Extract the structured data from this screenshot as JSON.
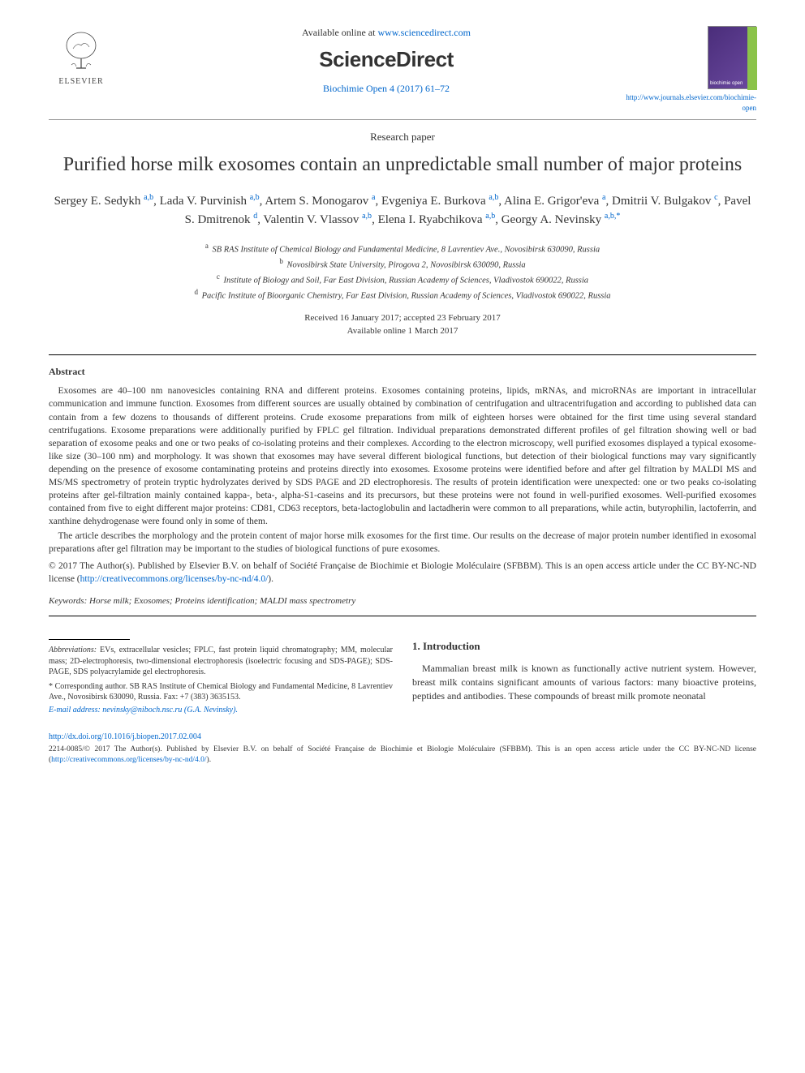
{
  "header": {
    "available_prefix": "Available online at ",
    "available_url": "www.sciencedirect.com",
    "publisher_brand": "ScienceDirect",
    "elsevier_label": "ELSEVIER",
    "citation": "Biochimie Open 4 (2017) 61–72",
    "journal_url": "http://www.journals.elsevier.com/biochimie-open"
  },
  "paper": {
    "type": "Research paper",
    "title": "Purified horse milk exosomes contain an unpredictable small number of major proteins",
    "authors_html": "Sergey E. Sedykh <sup>a,b</sup>, Lada V. Purvinish <sup>a,b</sup>, Artem S. Monogarov <sup>a</sup>, Evgeniya E. Burkova <sup>a,b</sup>, Alina E. Grigor'eva <sup>a</sup>, Dmitrii V. Bulgakov <sup>c</sup>, Pavel S. Dmitrenok <sup>d</sup>, Valentin V. Vlassov <sup>a,b</sup>, Elena I. Ryabchikova <sup>a,b</sup>, Georgy A. Nevinsky <sup>a,b,*</sup>",
    "affiliations": [
      {
        "key": "a",
        "text": "SB RAS Institute of Chemical Biology and Fundamental Medicine, 8 Lavrentiev Ave., Novosibirsk 630090, Russia"
      },
      {
        "key": "b",
        "text": "Novosibirsk State University, Pirogova 2, Novosibirsk 630090, Russia"
      },
      {
        "key": "c",
        "text": "Institute of Biology and Soil, Far East Division, Russian Academy of Sciences, Vladivostok 690022, Russia"
      },
      {
        "key": "d",
        "text": "Pacific Institute of Bioorganic Chemistry, Far East Division, Russian Academy of Sciences, Vladivostok 690022, Russia"
      }
    ],
    "received": "Received 16 January 2017; accepted 23 February 2017",
    "available_online": "Available online 1 March 2017"
  },
  "abstract": {
    "heading": "Abstract",
    "para1": "Exosomes are 40–100 nm nanovesicles containing RNA and different proteins. Exosomes containing proteins, lipids, mRNAs, and microRNAs are important in intracellular communication and immune function. Exosomes from different sources are usually obtained by combination of centrifugation and ultracentrifugation and according to published data can contain from a few dozens to thousands of different proteins. Crude exosome preparations from milk of eighteen horses were obtained for the first time using several standard centrifugations. Exosome preparations were additionally purified by FPLC gel filtration. Individual preparations demonstrated different profiles of gel filtration showing well or bad separation of exosome peaks and one or two peaks of co-isolating proteins and their complexes. According to the electron microscopy, well purified exosomes displayed a typical exosome-like size (30–100 nm) and morphology. It was shown that exosomes may have several different biological functions, but detection of their biological functions may vary significantly depending on the presence of exosome contaminating proteins and proteins directly into exosomes. Exosome proteins were identified before and after gel filtration by MALDI MS and MS/MS spectrometry of protein tryptic hydrolyzates derived by SDS PAGE and 2D electrophoresis. The results of protein identification were unexpected: one or two peaks co-isolating proteins after gel-filtration mainly contained kappa-, beta-, alpha-S1-caseins and its precursors, but these proteins were not found in well-purified exosomes. Well-purified exosomes contained from five to eight different major proteins: CD81, CD63 receptors, beta-lactoglobulin and lactadherin were common to all preparations, while actin, butyrophilin, lactoferrin, and xanthine dehydrogenase were found only in some of them.",
    "para2": "The article describes the morphology and the protein content of major horse milk exosomes for the first time. Our results on the decrease of major protein number identified in exosomal preparations after gel filtration may be important to the studies of biological functions of pure exosomes.",
    "copyright": "© 2017 The Author(s). Published by Elsevier B.V. on behalf of Société Française de Biochimie et Biologie Moléculaire (SFBBM). This is an open access article under the CC BY-NC-ND license (",
    "license_url": "http://creativecommons.org/licenses/by-nc-nd/4.0/",
    "copyright_suffix": ")."
  },
  "keywords": {
    "label": "Keywords:",
    "text": " Horse milk; Exosomes; Proteins identification; MALDI mass spectrometry"
  },
  "footnotes": {
    "abbrev_label": "Abbreviations:",
    "abbrev_text": " EVs, extracellular vesicles; FPLC, fast protein liquid chromatography; MM, molecular mass; 2D-electrophoresis, two-dimensional electrophoresis (isoelectric focusing and SDS-PAGE); SDS-PAGE, SDS polyacrylamide gel electrophoresis.",
    "corresp_label": "* Corresponding author.",
    "corresp_text": " SB RAS Institute of Chemical Biology and Fundamental Medicine, 8 Lavrentiev Ave., Novosibirsk 630090, Russia. Fax: +7 (383) 3635153.",
    "email_label": "E-mail address: ",
    "email": "nevinsky@niboch.nsc.ru",
    "email_suffix": " (G.A. Nevinsky)."
  },
  "intro": {
    "heading": "1. Introduction",
    "body": "Mammalian breast milk is known as functionally active nutrient system. However, breast milk contains significant amounts of various factors: many bioactive proteins, peptides and antibodies. These compounds of breast milk promote neonatal"
  },
  "footer": {
    "doi": "http://dx.doi.org/10.1016/j.biopen.2017.02.004",
    "issn_line": "2214-0085/© 2017 The Author(s). Published by Elsevier B.V. on behalf of Société Française de Biochimie et Biologie Moléculaire (SFBBM). This is an open access article under the CC BY-NC-ND license (",
    "issn_url": "http://creativecommons.org/licenses/by-nc-nd/4.0/",
    "issn_suffix": ")."
  },
  "colors": {
    "link": "#0066cc",
    "text": "#333333",
    "rule": "#000000"
  }
}
